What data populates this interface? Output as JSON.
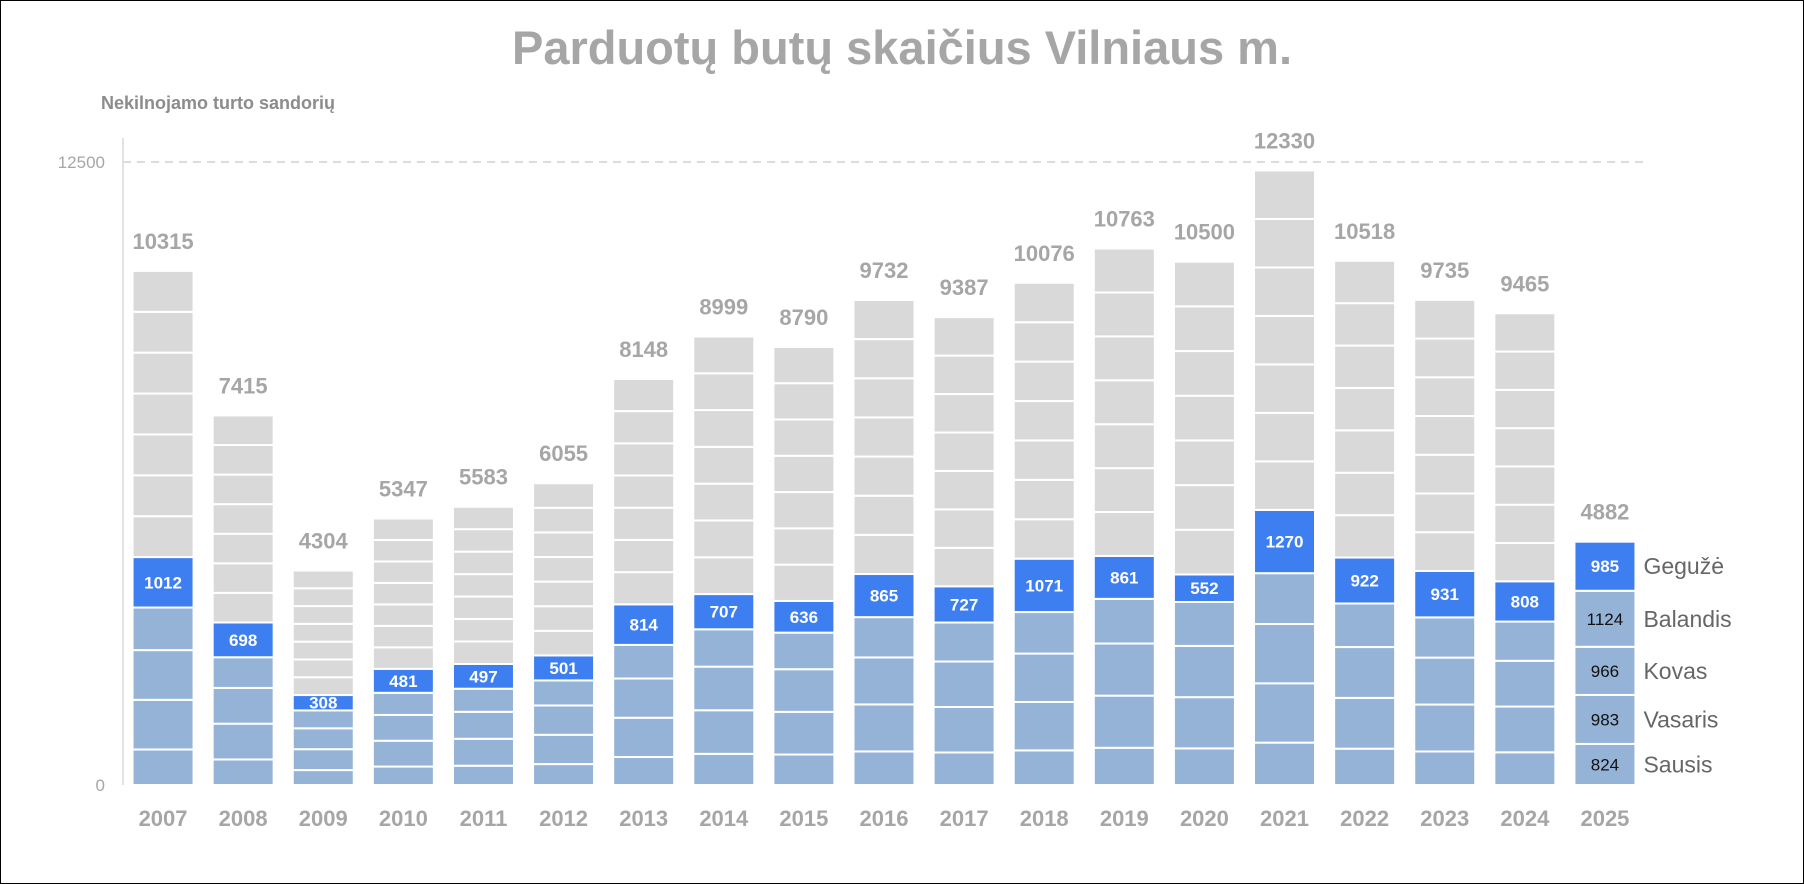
{
  "chart_data": {
    "type": "bar",
    "stacked": true,
    "title": "Parduotų butų skaičius Vilniaus m.",
    "ylabel": "Nekilnojamo turto sandorių",
    "xlabel": "",
    "ylim": [
      0,
      12500
    ],
    "yticks": [
      0,
      12500
    ],
    "grid": "dashed line at 12500",
    "categories": [
      "2007",
      "2008",
      "2009",
      "2010",
      "2011",
      "2012",
      "2013",
      "2014",
      "2015",
      "2016",
      "2017",
      "2018",
      "2019",
      "2020",
      "2021",
      "2022",
      "2023",
      "2024",
      "2025"
    ],
    "totals": [
      10315,
      7415,
      4304,
      5347,
      5583,
      6055,
      8148,
      8999,
      8790,
      9732,
      9387,
      10076,
      10763,
      10500,
      12330,
      10518,
      9735,
      9465,
      4882
    ],
    "highlight_series_name": "Gegužė",
    "highlight_values": [
      1012,
      698,
      308,
      481,
      497,
      501,
      814,
      707,
      636,
      865,
      727,
      1071,
      861,
      552,
      1270,
      922,
      931,
      808,
      985
    ],
    "months_2025": [
      {
        "name": "Sausis",
        "value": 824
      },
      {
        "name": "Vasaris",
        "value": 983
      },
      {
        "name": "Kovas",
        "value": 966
      },
      {
        "name": "Balandis",
        "value": 1124
      },
      {
        "name": "Gegužė",
        "value": 985
      }
    ],
    "colors": {
      "before_may": "#95b3d7",
      "may": "#3d7ff1",
      "after_may": "#d9d9d9",
      "segment_border": "#ffffff",
      "text_gray": "#a6a6a6"
    }
  }
}
